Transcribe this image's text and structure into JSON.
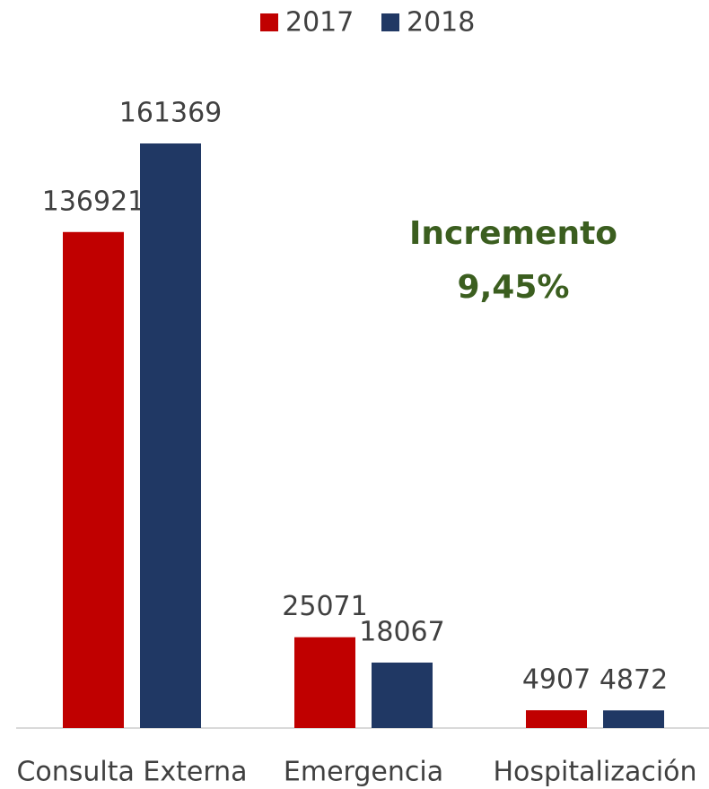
{
  "chart_data": {
    "type": "bar",
    "categories": [
      "Consulta Externa",
      "Emergencia",
      "Hospitalización"
    ],
    "series": [
      {
        "name": "2017",
        "color": "#c00000",
        "values": [
          136921,
          25071,
          4907
        ]
      },
      {
        "name": "2018",
        "color": "#203864",
        "values": [
          161369,
          18067,
          4872
        ]
      }
    ],
    "annotation": [
      "Incremento",
      "9,45%"
    ],
    "annotation_color": "#3b5e1f",
    "legend": "top"
  }
}
